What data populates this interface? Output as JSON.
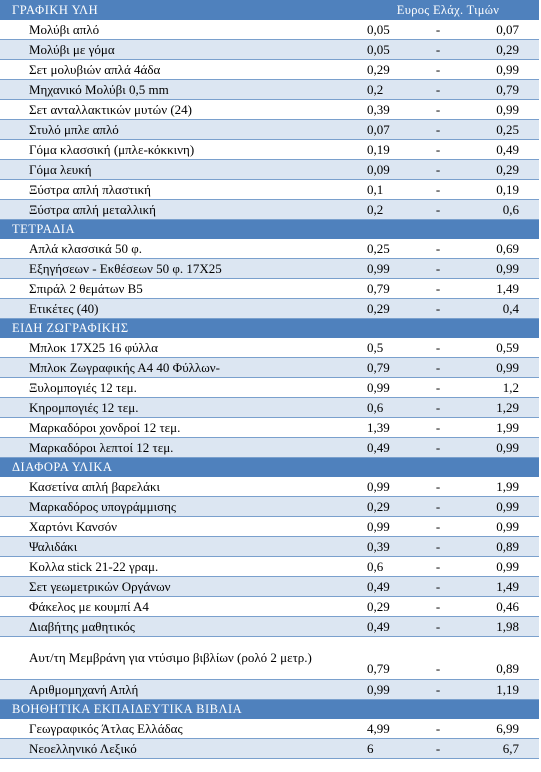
{
  "header": {
    "range_label": "Ευρος Ελάχ. Τιμών"
  },
  "sections": [
    {
      "title": "ΓΡΑΦΙΚΗ ΥΛΗ",
      "items": [
        {
          "name": "Μολύβι απλό",
          "min": "0,05",
          "sep": "-",
          "max": "0,07"
        },
        {
          "name": "Μολύβι με γόμα",
          "min": "0,05",
          "sep": "-",
          "max": "0,29"
        },
        {
          "name": "Σετ μολυβιών απλά 4άδα",
          "min": "0,29",
          "sep": "-",
          "max": "0,99"
        },
        {
          "name": "Μηχανικό Μολύβι 0,5 mm",
          "min": "0,2",
          "sep": "-",
          "max": "0,79"
        },
        {
          "name": "Σετ ανταλλακτικών μυτών (24)",
          "min": "0,39",
          "sep": "-",
          "max": "0,99"
        },
        {
          "name": "Στυλό μπλε απλό",
          "min": "0,07",
          "sep": "-",
          "max": "0,25"
        },
        {
          "name": "Γόμα κλασσική (μπλε-κόκκινη)",
          "min": "0,19",
          "sep": "-",
          "max": "0,49"
        },
        {
          "name": "Γόμα λευκή",
          "min": "0,09",
          "sep": "-",
          "max": "0,29"
        },
        {
          "name": "Ξύστρα απλή πλαστική",
          "min": "0,1",
          "sep": "-",
          "max": "0,19"
        },
        {
          "name": "Ξύστρα απλή μεταλλική",
          "min": "0,2",
          "sep": "-",
          "max": "0,6"
        }
      ]
    },
    {
      "title": "ΤΕΤΡΑΔΙΑ",
      "items": [
        {
          "name": "Απλά κλασσικά 50 φ.",
          "min": "0,25",
          "sep": "-",
          "max": "0,69"
        },
        {
          "name": "Εξηγήσεων - Εκθέσεων 50 φ. 17Χ25",
          "min": "0,99",
          "sep": "-",
          "max": "0,99"
        },
        {
          "name": "Σπιράλ 2 θεμάτων Β5",
          "min": "0,79",
          "sep": "-",
          "max": "1,49"
        },
        {
          "name": "Ετικέτες (40)",
          "min": "0,29",
          "sep": "-",
          "max": "0,4"
        }
      ]
    },
    {
      "title": "ΕΙΔΗ ΖΩΓΡΑΦΙΚΗΣ",
      "items": [
        {
          "name": "Μπλοκ 17Χ25 16 φύλλα",
          "min": "0,5",
          "sep": "-",
          "max": "0,59"
        },
        {
          "name": "Μπλοκ Ζωγραφικής Α4 40 Φύλλων-",
          "min": "0,79",
          "sep": "-",
          "max": "0,99"
        },
        {
          "name": "Ξυλομπογιές 12 τεμ.",
          "min": "0,99",
          "sep": "-",
          "max": "1,2"
        },
        {
          "name": "Κηρομπογιές 12 τεμ.",
          "min": "0,6",
          "sep": "-",
          "max": "1,29"
        },
        {
          "name": "Μαρκαδόροι χονδροί 12 τεμ.",
          "min": "1,39",
          "sep": "-",
          "max": "1,99"
        },
        {
          "name": "Μαρκαδόροι λεπτοί 12 τεμ.",
          "min": "0,49",
          "sep": "-",
          "max": "0,99"
        }
      ]
    },
    {
      "title": "ΔΙΑΦΟΡΑ ΥΛΙΚΑ",
      "items": [
        {
          "name": "Κασετίνα απλή βαρελάκι",
          "min": "0,99",
          "sep": "-",
          "max": "1,99"
        },
        {
          "name": "Μαρκαδόρος υπογράμμισης",
          "min": "0,29",
          "sep": "-",
          "max": "0,99"
        },
        {
          "name": "Χαρτόνι Κανσόν",
          "min": "0,99",
          "sep": "-",
          "max": "0,99"
        },
        {
          "name": "Ψαλιδάκι",
          "min": "0,39",
          "sep": "-",
          "max": "0,89"
        },
        {
          "name": "Κολλα stick 21-22 γραμ.",
          "min": "0,6",
          "sep": "-",
          "max": "0,99"
        },
        {
          "name": "Σετ γεωμετρικών Οργάνων",
          "min": "0,49",
          "sep": "-",
          "max": "1,49"
        },
        {
          "name": "Φάκελος με κουμπί Α4",
          "min": "0,29",
          "sep": "-",
          "max": "0,46"
        },
        {
          "name": "Διαβήτης μαθητικός",
          "min": "0,49",
          "sep": "-",
          "max": "1,98"
        },
        {
          "name": "Αυτ/τη Μεμβράνη για ντύσιμο βιβλίων (ρολό 2 μετρ.)",
          "min": "0,79",
          "sep": "-",
          "max": "0,89"
        },
        {
          "name": "Αριθμομηχανή Απλή",
          "min": "0,99",
          "sep": "-",
          "max": "1,19"
        }
      ]
    },
    {
      "title": "ΒΟΗΘΗΤΙΚΑ ΕΚΠΑΙΔΕΥΤΙΚΑ ΒΙΒΛΙΑ",
      "items": [
        {
          "name": "Γεωγραφικός Άτλας Ελλάδας",
          "min": "4,99",
          "sep": "-",
          "max": "6,99"
        },
        {
          "name": "Νεοελληνικό Λεξικό",
          "min": "6",
          "sep": "-",
          "max": "6,7"
        }
      ]
    }
  ]
}
